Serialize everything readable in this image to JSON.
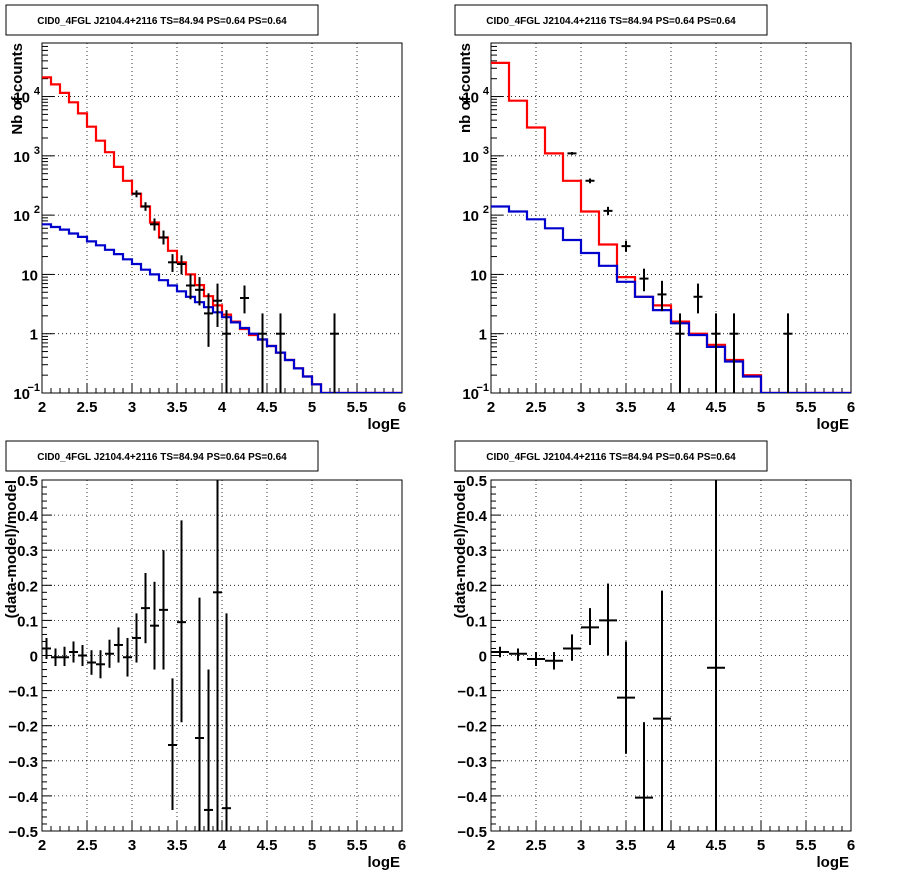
{
  "page": {
    "background": "#ffffff"
  },
  "colors": {
    "data": "#000000",
    "total_model": "#ff0000",
    "source_model": "#0000cc",
    "grid": "#000000"
  },
  "chart_data": [
    {
      "type": "line",
      "title": "CID0_4FGL J2104.4+2116 TS=84.94 PS=0.64 PS=0.64",
      "xlabel": "logE",
      "ylabel": "Nb of counts",
      "xlim": [
        2,
        6
      ],
      "ylim": [
        0.1,
        80000
      ],
      "yscale": "log",
      "grid": true,
      "x_ticks": [
        "2",
        "2.5",
        "3",
        "3.5",
        "4",
        "4.5",
        "5",
        "5.5",
        "6"
      ],
      "y_ticks": [
        {
          "value": 0.1,
          "label": "10",
          "sup": "−1"
        },
        {
          "value": 1,
          "label": "1",
          "sup": ""
        },
        {
          "value": 10,
          "label": "10",
          "sup": ""
        },
        {
          "value": 100,
          "label": "10",
          "sup": "2"
        },
        {
          "value": 1000,
          "label": "10",
          "sup": "3"
        },
        {
          "value": 10000,
          "label": "10",
          "sup": "4"
        }
      ],
      "bin_edges": [
        2,
        2.1,
        2.2,
        2.3,
        2.4,
        2.5,
        2.6,
        2.7,
        2.8,
        2.9,
        3.0,
        3.1,
        3.2,
        3.3,
        3.4,
        3.5,
        3.6,
        3.7,
        3.8,
        3.9,
        4.0,
        4.1,
        4.2,
        4.3,
        4.4,
        4.5,
        4.6,
        4.7,
        4.8,
        4.9,
        5.0,
        5.1,
        5.2,
        5.3,
        5.4,
        5.5,
        5.6,
        5.7,
        5.8,
        5.9,
        6.0
      ],
      "series": [
        {
          "name": "",
          "kind": "step",
          "color": "#ff0000",
          "values": [
            21000,
            16000,
            11500,
            8000,
            5200,
            3100,
            1800,
            1150,
            650,
            380,
            230,
            140,
            75,
            42,
            25,
            16,
            10,
            6.6,
            4.3,
            3.0,
            2.1,
            1.6,
            1.2,
            0.95,
            0.8,
            0.62,
            0.48,
            0.36,
            0.26,
            0.19,
            0.14,
            0.1,
            0.1,
            0.1,
            0.1,
            0.1,
            0.1,
            0.1,
            0.1,
            0.1
          ]
        },
        {
          "name": "",
          "kind": "step",
          "color": "#0000cc",
          "values": [
            70,
            63,
            57,
            49,
            43,
            36,
            31,
            26,
            22,
            18,
            15,
            12,
            10,
            8,
            6.5,
            5.2,
            4.2,
            3.4,
            2.8,
            2.3,
            1.9,
            1.55,
            1.25,
            1.0,
            0.8,
            0.62,
            0.48,
            0.36,
            0.26,
            0.19,
            0.14,
            0.1,
            0.1,
            0.1,
            0.1,
            0.1,
            0.1,
            0.1,
            0.1,
            0.1
          ]
        },
        {
          "name": "",
          "kind": "errorbar",
          "color": "#000000",
          "points": [
            {
              "x": 3.05,
              "y": 230,
              "lo": 200,
              "hi": 262
            },
            {
              "x": 3.15,
              "y": 140,
              "lo": 118,
              "hi": 165
            },
            {
              "x": 3.25,
              "y": 70,
              "lo": 55,
              "hi": 88
            },
            {
              "x": 3.35,
              "y": 42,
              "lo": 32,
              "hi": 55
            },
            {
              "x": 3.45,
              "y": 16,
              "lo": 11,
              "hi": 22
            },
            {
              "x": 3.55,
              "y": 15,
              "lo": 10,
              "hi": 21
            },
            {
              "x": 3.65,
              "y": 6.5,
              "lo": 3.8,
              "hi": 10
            },
            {
              "x": 3.75,
              "y": 5.5,
              "lo": 3.0,
              "hi": 9
            },
            {
              "x": 3.85,
              "y": 2.2,
              "lo": 0.6,
              "hi": 4.8
            },
            {
              "x": 3.95,
              "y": 3.6,
              "lo": 1.3,
              "hi": 7
            },
            {
              "x": 4.05,
              "y": 1,
              "lo": 0.1,
              "hi": 2.5
            },
            {
              "x": 4.25,
              "y": 4,
              "lo": 2.2,
              "hi": 6.5
            },
            {
              "x": 4.45,
              "y": 1,
              "lo": 0.1,
              "hi": 2.2
            },
            {
              "x": 4.65,
              "y": 1,
              "lo": 0.1,
              "hi": 2.2
            },
            {
              "x": 5.25,
              "y": 1,
              "lo": 0.1,
              "hi": 2.2
            }
          ]
        }
      ]
    },
    {
      "type": "line",
      "title": "CID0_4FGL J2104.4+2116 TS=84.94 PS=0.64 PS=0.64",
      "xlabel": "logE",
      "ylabel": "nb of counts",
      "xlim": [
        2,
        6
      ],
      "ylim": [
        0.1,
        80000
      ],
      "yscale": "log",
      "grid": true,
      "x_ticks": [
        "2",
        "2.5",
        "3",
        "3.5",
        "4",
        "4.5",
        "5",
        "5.5",
        "6"
      ],
      "y_ticks": [
        {
          "value": 0.1,
          "label": "10",
          "sup": "−1"
        },
        {
          "value": 1,
          "label": "1",
          "sup": ""
        },
        {
          "value": 10,
          "label": "10",
          "sup": ""
        },
        {
          "value": 100,
          "label": "10",
          "sup": "2"
        },
        {
          "value": 1000,
          "label": "10",
          "sup": "3"
        },
        {
          "value": 10000,
          "label": "10",
          "sup": "4"
        }
      ],
      "bin_edges": [
        2,
        2.2,
        2.4,
        2.6,
        2.8,
        3.0,
        3.2,
        3.4,
        3.6,
        3.8,
        4.0,
        4.2,
        4.4,
        4.6,
        4.8,
        5.0,
        5.2,
        5.4,
        5.6,
        5.8,
        6.0
      ],
      "series": [
        {
          "name": "",
          "kind": "step",
          "color": "#ff0000",
          "values": [
            37000,
            8500,
            3000,
            1100,
            380,
            115,
            32,
            9,
            4.2,
            3.0,
            1.6,
            1.0,
            0.65,
            0.36,
            0.2,
            0.1,
            0.1,
            0.1,
            0.1,
            0.1
          ]
        },
        {
          "name": "",
          "kind": "step",
          "color": "#0000cc",
          "values": [
            140,
            115,
            85,
            60,
            38,
            23,
            14,
            7.5,
            4.2,
            2.5,
            1.5,
            0.95,
            0.6,
            0.34,
            0.19,
            0.1,
            0.1,
            0.1,
            0.1,
            0.1
          ]
        },
        {
          "name": "",
          "kind": "errorbar",
          "color": "#000000",
          "points": [
            {
              "x": 2.9,
              "y": 1100,
              "lo": 1040,
              "hi": 1160
            },
            {
              "x": 3.1,
              "y": 380,
              "lo": 345,
              "hi": 415
            },
            {
              "x": 3.3,
              "y": 118,
              "lo": 100,
              "hi": 138
            },
            {
              "x": 3.5,
              "y": 30,
              "lo": 24,
              "hi": 37
            },
            {
              "x": 3.7,
              "y": 8.5,
              "lo": 5.2,
              "hi": 12.5
            },
            {
              "x": 3.9,
              "y": 4.6,
              "lo": 2.4,
              "hi": 7.8
            },
            {
              "x": 4.1,
              "y": 1,
              "lo": 0.1,
              "hi": 2.2
            },
            {
              "x": 4.3,
              "y": 4.2,
              "lo": 2.2,
              "hi": 7
            },
            {
              "x": 4.5,
              "y": 1,
              "lo": 0.1,
              "hi": 2.2
            },
            {
              "x": 4.7,
              "y": 1,
              "lo": 0.1,
              "hi": 2.2
            },
            {
              "x": 5.3,
              "y": 1,
              "lo": 0.1,
              "hi": 2.2
            }
          ]
        }
      ]
    },
    {
      "type": "scatter",
      "title": "CID0_4FGL J2104.4+2116 TS=84.94 PS=0.64 PS=0.64",
      "xlabel": "logE",
      "ylabel": "(data-model)/model",
      "xlim": [
        2,
        6
      ],
      "ylim": [
        -0.5,
        0.5
      ],
      "yscale": "linear",
      "grid": true,
      "x_ticks": [
        "2",
        "2.5",
        "3",
        "3.5",
        "4",
        "4.5",
        "5",
        "5.5",
        "6"
      ],
      "y_ticks": [
        {
          "value": -0.5,
          "label": "−0.5",
          "sup": ""
        },
        {
          "value": -0.4,
          "label": "−0.4",
          "sup": ""
        },
        {
          "value": -0.3,
          "label": "−0.3",
          "sup": ""
        },
        {
          "value": -0.2,
          "label": "−0.2",
          "sup": ""
        },
        {
          "value": -0.1,
          "label": "−0.1",
          "sup": ""
        },
        {
          "value": 0,
          "label": "0",
          "sup": ""
        },
        {
          "value": 0.1,
          "label": "0.1",
          "sup": ""
        },
        {
          "value": 0.2,
          "label": "0.2",
          "sup": ""
        },
        {
          "value": 0.3,
          "label": "0.3",
          "sup": ""
        },
        {
          "value": 0.4,
          "label": "0.4",
          "sup": ""
        },
        {
          "value": 0.5,
          "label": "0.5",
          "sup": ""
        }
      ],
      "x_half_width": 0.05,
      "series": [
        {
          "name": "",
          "kind": "errorbar",
          "color": "#000000",
          "points": [
            {
              "x": 2.05,
              "y": 0.02,
              "lo": -0.01,
              "hi": 0.05
            },
            {
              "x": 2.15,
              "y": -0.005,
              "lo": -0.03,
              "hi": 0.02
            },
            {
              "x": 2.25,
              "y": -0.005,
              "lo": -0.03,
              "hi": 0.025
            },
            {
              "x": 2.35,
              "y": 0.01,
              "lo": -0.02,
              "hi": 0.04
            },
            {
              "x": 2.45,
              "y": 0.0,
              "lo": -0.03,
              "hi": 0.03
            },
            {
              "x": 2.55,
              "y": -0.02,
              "lo": -0.055,
              "hi": 0.015
            },
            {
              "x": 2.65,
              "y": -0.025,
              "lo": -0.065,
              "hi": 0.015
            },
            {
              "x": 2.75,
              "y": 0.005,
              "lo": -0.035,
              "hi": 0.045
            },
            {
              "x": 2.85,
              "y": 0.03,
              "lo": -0.02,
              "hi": 0.08
            },
            {
              "x": 2.95,
              "y": -0.005,
              "lo": -0.06,
              "hi": 0.05
            },
            {
              "x": 3.05,
              "y": 0.05,
              "lo": -0.02,
              "hi": 0.12
            },
            {
              "x": 3.15,
              "y": 0.135,
              "lo": 0.035,
              "hi": 0.235
            },
            {
              "x": 3.25,
              "y": 0.085,
              "lo": -0.04,
              "hi": 0.21
            },
            {
              "x": 3.35,
              "y": 0.13,
              "lo": -0.04,
              "hi": 0.3
            },
            {
              "x": 3.45,
              "y": -0.255,
              "lo": -0.44,
              "hi": -0.065
            },
            {
              "x": 3.55,
              "y": 0.095,
              "lo": -0.19,
              "hi": 0.385
            },
            {
              "x": 3.75,
              "y": -0.235,
              "lo": -0.5,
              "hi": 0.165
            },
            {
              "x": 3.85,
              "y": -0.44,
              "lo": -0.5,
              "hi": -0.04
            },
            {
              "x": 3.95,
              "y": 0.18,
              "lo": -0.5,
              "hi": 0.5
            },
            {
              "x": 4.05,
              "y": -0.435,
              "lo": -0.5,
              "hi": 0.12
            }
          ]
        }
      ]
    },
    {
      "type": "scatter",
      "title": "CID0_4FGL J2104.4+2116 TS=84.94 PS=0.64 PS=0.64",
      "xlabel": "logE",
      "ylabel": "(data-model)/model",
      "xlim": [
        2,
        6
      ],
      "ylim": [
        -0.5,
        0.5
      ],
      "yscale": "linear",
      "grid": true,
      "x_ticks": [
        "2",
        "2.5",
        "3",
        "3.5",
        "4",
        "4.5",
        "5",
        "5.5",
        "6"
      ],
      "y_ticks": [
        {
          "value": -0.5,
          "label": "−0.5",
          "sup": ""
        },
        {
          "value": -0.4,
          "label": "−0.4",
          "sup": ""
        },
        {
          "value": -0.3,
          "label": "−0.3",
          "sup": ""
        },
        {
          "value": -0.2,
          "label": "−0.2",
          "sup": ""
        },
        {
          "value": -0.1,
          "label": "−0.1",
          "sup": ""
        },
        {
          "value": 0,
          "label": "0",
          "sup": ""
        },
        {
          "value": 0.1,
          "label": "0.1",
          "sup": ""
        },
        {
          "value": 0.2,
          "label": "0.2",
          "sup": ""
        },
        {
          "value": 0.3,
          "label": "0.3",
          "sup": ""
        },
        {
          "value": 0.4,
          "label": "0.4",
          "sup": ""
        },
        {
          "value": 0.5,
          "label": "0.5",
          "sup": ""
        }
      ],
      "x_half_width": 0.1,
      "series": [
        {
          "name": "",
          "kind": "errorbar",
          "color": "#000000",
          "points": [
            {
              "x": 2.1,
              "y": 0.01,
              "lo": -0.005,
              "hi": 0.025
            },
            {
              "x": 2.3,
              "y": 0.005,
              "lo": -0.015,
              "hi": 0.02
            },
            {
              "x": 2.5,
              "y": -0.01,
              "lo": -0.03,
              "hi": 0.01
            },
            {
              "x": 2.7,
              "y": -0.015,
              "lo": -0.04,
              "hi": 0.01
            },
            {
              "x": 2.9,
              "y": 0.02,
              "lo": -0.015,
              "hi": 0.06
            },
            {
              "x": 3.1,
              "y": 0.08,
              "lo": 0.03,
              "hi": 0.135
            },
            {
              "x": 3.3,
              "y": 0.1,
              "lo": 0.0,
              "hi": 0.205
            },
            {
              "x": 3.5,
              "y": -0.12,
              "lo": -0.28,
              "hi": 0.04
            },
            {
              "x": 3.7,
              "y": -0.405,
              "lo": -0.5,
              "hi": -0.19
            },
            {
              "x": 3.9,
              "y": -0.18,
              "lo": -0.5,
              "hi": 0.185
            },
            {
              "x": 4.5,
              "y": -0.035,
              "lo": -0.5,
              "hi": 0.5
            }
          ]
        }
      ]
    }
  ]
}
